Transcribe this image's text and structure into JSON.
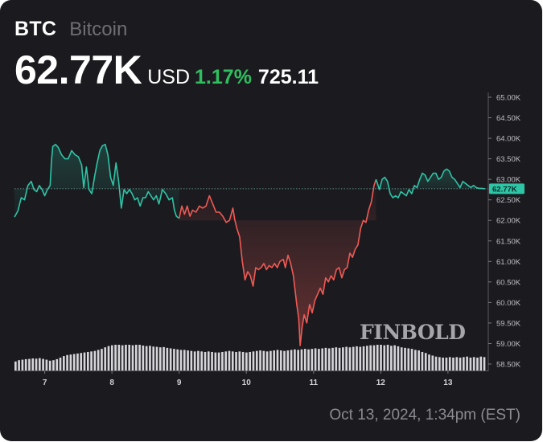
{
  "header": {
    "ticker": "BTC",
    "name": "Bitcoin",
    "price": "62.77K",
    "currency": "USD",
    "change_pct": "1.17%",
    "change_abs": "725.11"
  },
  "footer": {
    "timestamp": "Oct 13, 2024, 1:34pm (EST)"
  },
  "watermark": "FINBOLD",
  "colors": {
    "background": "#1b1b1f",
    "up": "#2ec4a6",
    "down": "#f05a55",
    "volume": "#d6d6da",
    "positive_text": "#2fbf5f"
  },
  "chart_data": {
    "type": "line",
    "x_ticks": [
      7,
      8,
      9,
      10,
      11,
      12,
      13
    ],
    "x_range": [
      6.55,
      13.6
    ],
    "ylim": [
      58.5,
      65.0
    ],
    "y_ticks": [
      "65.00K",
      "64.50K",
      "64.00K",
      "63.50K",
      "63.00K",
      "62.50K",
      "62.00K",
      "61.50K",
      "61.00K",
      "60.50K",
      "60.00K",
      "59.50K",
      "59.00K",
      "58.50K"
    ],
    "reference_value": 62.77,
    "current_label": "62.77K",
    "split_x": [
      9.0,
      11.93
    ],
    "grid": false,
    "price_series": [
      [
        6.55,
        62.08
      ],
      [
        6.6,
        62.23
      ],
      [
        6.65,
        62.55
      ],
      [
        6.7,
        62.5
      ],
      [
        6.75,
        62.85
      ],
      [
        6.8,
        62.95
      ],
      [
        6.84,
        62.75
      ],
      [
        6.88,
        62.7
      ],
      [
        6.92,
        62.85
      ],
      [
        6.96,
        62.75
      ],
      [
        7.0,
        62.6
      ],
      [
        7.04,
        62.75
      ],
      [
        7.08,
        62.85
      ],
      [
        7.1,
        63.45
      ],
      [
        7.12,
        63.8
      ],
      [
        7.16,
        63.85
      ],
      [
        7.2,
        63.78
      ],
      [
        7.25,
        63.6
      ],
      [
        7.3,
        63.5
      ],
      [
        7.35,
        63.5
      ],
      [
        7.4,
        63.7
      ],
      [
        7.45,
        63.6
      ],
      [
        7.5,
        63.55
      ],
      [
        7.55,
        63.35
      ],
      [
        7.58,
        62.8
      ],
      [
        7.62,
        63.3
      ],
      [
        7.66,
        62.75
      ],
      [
        7.7,
        62.65
      ],
      [
        7.74,
        63.05
      ],
      [
        7.78,
        63.4
      ],
      [
        7.82,
        63.7
      ],
      [
        7.86,
        63.82
      ],
      [
        7.9,
        63.85
      ],
      [
        7.94,
        63.6
      ],
      [
        7.98,
        63.05
      ],
      [
        8.02,
        62.85
      ],
      [
        8.06,
        63.4
      ],
      [
        8.1,
        62.95
      ],
      [
        8.14,
        62.3
      ],
      [
        8.18,
        62.75
      ],
      [
        8.22,
        62.65
      ],
      [
        8.26,
        62.75
      ],
      [
        8.3,
        62.65
      ],
      [
        8.34,
        62.5
      ],
      [
        8.38,
        62.55
      ],
      [
        8.42,
        62.35
      ],
      [
        8.46,
        62.55
      ],
      [
        8.5,
        62.55
      ],
      [
        8.54,
        62.7
      ],
      [
        8.58,
        62.6
      ],
      [
        8.62,
        62.5
      ],
      [
        8.66,
        62.6
      ],
      [
        8.7,
        62.4
      ],
      [
        8.75,
        62.75
      ],
      [
        8.8,
        62.65
      ],
      [
        8.85,
        62.5
      ],
      [
        8.9,
        62.55
      ],
      [
        8.93,
        62.25
      ],
      [
        8.96,
        62.1
      ],
      [
        9.0,
        62.05
      ],
      [
        9.04,
        62.35
      ],
      [
        9.08,
        62.15
      ],
      [
        9.12,
        62.35
      ],
      [
        9.16,
        62.1
      ],
      [
        9.2,
        62.25
      ],
      [
        9.25,
        62.2
      ],
      [
        9.3,
        62.35
      ],
      [
        9.35,
        62.3
      ],
      [
        9.4,
        62.35
      ],
      [
        9.45,
        62.6
      ],
      [
        9.5,
        62.4
      ],
      [
        9.55,
        62.2
      ],
      [
        9.6,
        62.2
      ],
      [
        9.65,
        62.1
      ],
      [
        9.7,
        61.95
      ],
      [
        9.75,
        62.0
      ],
      [
        9.8,
        62.3
      ],
      [
        9.83,
        62.0
      ],
      [
        9.86,
        61.8
      ],
      [
        9.9,
        61.6
      ],
      [
        9.94,
        61.0
      ],
      [
        9.98,
        60.55
      ],
      [
        10.02,
        60.75
      ],
      [
        10.06,
        60.65
      ],
      [
        10.1,
        60.4
      ],
      [
        10.14,
        60.85
      ],
      [
        10.18,
        60.8
      ],
      [
        10.22,
        60.85
      ],
      [
        10.26,
        60.95
      ],
      [
        10.3,
        60.8
      ],
      [
        10.34,
        60.9
      ],
      [
        10.38,
        60.85
      ],
      [
        10.42,
        60.95
      ],
      [
        10.46,
        60.85
      ],
      [
        10.5,
        61.0
      ],
      [
        10.55,
        61.05
      ],
      [
        10.58,
        60.85
      ],
      [
        10.62,
        61.15
      ],
      [
        10.66,
        60.95
      ],
      [
        10.7,
        60.65
      ],
      [
        10.75,
        59.95
      ],
      [
        10.78,
        59.6
      ],
      [
        10.8,
        58.95
      ],
      [
        10.83,
        59.4
      ],
      [
        10.86,
        59.7
      ],
      [
        10.9,
        59.5
      ],
      [
        10.94,
        59.95
      ],
      [
        10.98,
        59.75
      ],
      [
        11.02,
        60.05
      ],
      [
        11.06,
        60.2
      ],
      [
        11.1,
        60.35
      ],
      [
        11.14,
        60.2
      ],
      [
        11.18,
        60.6
      ],
      [
        11.22,
        60.5
      ],
      [
        11.26,
        60.65
      ],
      [
        11.3,
        60.55
      ],
      [
        11.34,
        60.8
      ],
      [
        11.38,
        60.85
      ],
      [
        11.42,
        60.6
      ],
      [
        11.46,
        60.8
      ],
      [
        11.5,
        60.85
      ],
      [
        11.54,
        61.2
      ],
      [
        11.58,
        61.1
      ],
      [
        11.62,
        61.3
      ],
      [
        11.66,
        61.4
      ],
      [
        11.7,
        61.8
      ],
      [
        11.74,
        62.0
      ],
      [
        11.78,
        61.95
      ],
      [
        11.82,
        62.25
      ],
      [
        11.86,
        62.45
      ],
      [
        11.9,
        62.85
      ],
      [
        11.93,
        63.0
      ],
      [
        11.98,
        62.75
      ],
      [
        12.02,
        63.0
      ],
      [
        12.06,
        63.05
      ],
      [
        12.1,
        62.95
      ],
      [
        12.14,
        62.65
      ],
      [
        12.18,
        62.55
      ],
      [
        12.22,
        62.6
      ],
      [
        12.26,
        62.55
      ],
      [
        12.3,
        62.7
      ],
      [
        12.34,
        62.65
      ],
      [
        12.38,
        62.6
      ],
      [
        12.42,
        62.75
      ],
      [
        12.46,
        62.65
      ],
      [
        12.5,
        62.85
      ],
      [
        12.54,
        62.8
      ],
      [
        12.58,
        63.0
      ],
      [
        12.62,
        63.15
      ],
      [
        12.66,
        63.1
      ],
      [
        12.7,
        62.95
      ],
      [
        12.74,
        63.05
      ],
      [
        12.78,
        63.15
      ],
      [
        12.82,
        63.15
      ],
      [
        12.86,
        63.0
      ],
      [
        12.9,
        63.05
      ],
      [
        12.94,
        63.2
      ],
      [
        12.98,
        63.25
      ],
      [
        13.02,
        63.2
      ],
      [
        13.06,
        63.05
      ],
      [
        13.1,
        63.0
      ],
      [
        13.14,
        62.9
      ],
      [
        13.18,
        62.8
      ],
      [
        13.22,
        62.95
      ],
      [
        13.26,
        62.9
      ],
      [
        13.3,
        62.85
      ],
      [
        13.34,
        62.8
      ],
      [
        13.38,
        62.85
      ],
      [
        13.42,
        62.8
      ],
      [
        13.46,
        62.78
      ],
      [
        13.5,
        62.78
      ],
      [
        13.55,
        62.77
      ]
    ],
    "volume_relative": [
      0.35,
      0.4,
      0.42,
      0.44,
      0.45,
      0.47,
      0.46,
      0.48,
      0.45,
      0.42,
      0.38,
      0.4,
      0.44,
      0.5,
      0.56,
      0.6,
      0.62,
      0.64,
      0.66,
      0.68,
      0.7,
      0.72,
      0.74,
      0.76,
      0.8,
      0.84,
      0.9,
      0.95,
      0.98,
      1.0,
      1.0,
      0.98,
      1.0,
      1.0,
      0.98,
      1.0,
      1.0,
      0.97,
      0.95,
      0.96,
      0.93,
      0.92,
      0.9,
      0.91,
      0.88,
      0.86,
      0.84,
      0.82,
      0.8,
      0.8,
      0.78,
      0.76,
      0.74,
      0.76,
      0.74,
      0.72,
      0.74,
      0.72,
      0.7,
      0.7,
      0.72,
      0.74,
      0.76,
      0.74,
      0.72,
      0.74,
      0.72,
      0.7,
      0.72,
      0.74,
      0.76,
      0.78,
      0.76,
      0.74,
      0.76,
      0.78,
      0.8,
      0.78,
      0.76,
      0.78,
      0.8,
      0.82,
      0.8,
      0.82,
      0.84,
      0.82,
      0.84,
      0.86,
      0.84,
      0.86,
      0.88,
      0.86,
      0.88,
      0.9,
      0.88,
      0.9,
      0.92,
      0.9,
      0.92,
      0.94,
      0.92,
      0.94,
      0.96,
      0.98,
      0.98,
      1.0,
      1.0,
      0.98,
      1.0,
      0.96,
      0.98,
      0.94,
      0.9,
      0.88,
      0.86,
      0.84,
      0.8,
      0.78,
      0.72,
      0.68,
      0.62,
      0.58,
      0.54,
      0.52,
      0.5,
      0.5,
      0.52,
      0.5,
      0.52,
      0.5,
      0.52,
      0.54,
      0.5,
      0.52,
      0.5,
      0.54,
      0.52
    ]
  }
}
